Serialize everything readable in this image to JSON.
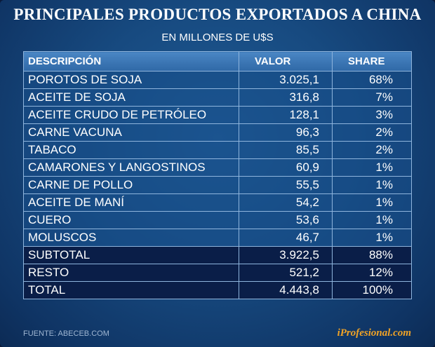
{
  "title": "PRINCIPALES PRODUCTOS EXPORTADOS A CHINA",
  "subtitle": "EN MILLONES DE U$S",
  "source": "FUENTE: ABECEB.COM",
  "brand": "iProfesional.com",
  "chart_data": {
    "type": "table",
    "columns": [
      "DESCRIPCIÓN",
      "VALOR",
      "SHARE"
    ],
    "rows": [
      {
        "descripcion": "POROTOS DE SOJA",
        "valor": "3.025,1",
        "share": "68%"
      },
      {
        "descripcion": "ACEITE DE SOJA",
        "valor": "316,8",
        "share": "7%"
      },
      {
        "descripcion": "ACEITE CRUDO DE PETRÓLEO",
        "valor": "128,1",
        "share": "3%"
      },
      {
        "descripcion": "CARNE VACUNA",
        "valor": "96,3",
        "share": "2%"
      },
      {
        "descripcion": "TABACO",
        "valor": "85,5",
        "share": "2%"
      },
      {
        "descripcion": "CAMARONES Y LANGOSTINOS",
        "valor": "60,9",
        "share": "1%"
      },
      {
        "descripcion": "CARNE DE POLLO",
        "valor": "55,5",
        "share": "1%"
      },
      {
        "descripcion": "ACEITE DE MANÍ",
        "valor": "54,2",
        "share": "1%"
      },
      {
        "descripcion": "CUERO",
        "valor": "53,6",
        "share": "1%"
      },
      {
        "descripcion": "MOLUSCOS",
        "valor": "46,7",
        "share": "1%"
      }
    ],
    "totals": [
      {
        "descripcion": "SUBTOTAL",
        "valor": "3.922,5",
        "share": "88%"
      },
      {
        "descripcion": "RESTO",
        "valor": "521,2",
        "share": "12%"
      },
      {
        "descripcion": "TOTAL",
        "valor": "4.443,8",
        "share": "100%"
      }
    ]
  },
  "colors": {
    "background": "#174a80",
    "header_row": "#3f7cbb",
    "total_rows": "#0a1e48",
    "grid_lines": "#8fb5dd",
    "brand": "#f1a326"
  }
}
